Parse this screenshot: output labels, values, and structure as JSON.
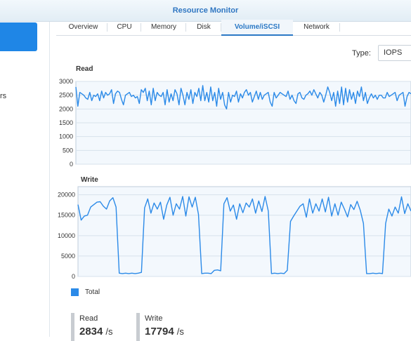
{
  "window": {
    "title": "Resource Monitor"
  },
  "sidebar": {
    "fragment_text": "rs"
  },
  "tabs": [
    "Overview",
    "CPU",
    "Memory",
    "Disk",
    "Volume/iSCSI",
    "Network"
  ],
  "active_tab": "Volume/iSCSI",
  "type_filter": {
    "label": "Type:",
    "value": "IOPS"
  },
  "legend": {
    "label": "Total",
    "color": "#2b8ae8"
  },
  "stats": {
    "read": {
      "label": "Read",
      "value": "2834",
      "unit": "/s"
    },
    "write": {
      "label": "Write",
      "value": "17794",
      "unit": "/s"
    }
  },
  "chart_data": [
    {
      "type": "line",
      "title": "Read",
      "ylim": [
        0,
        3000
      ],
      "yticks": [
        "3000",
        "2500",
        "2000",
        "1500",
        "1000",
        "500",
        "0"
      ],
      "grid": true,
      "series": [
        {
          "name": "Total",
          "values": [
            2800,
            2100,
            2600,
            2550,
            2500,
            2400,
            2350,
            2600,
            2300,
            2500,
            2450,
            2550,
            2300,
            2650,
            2400,
            2600,
            2500,
            2550,
            2700,
            2200,
            2550,
            2650,
            2600,
            2350,
            2150,
            2500,
            2550,
            2600,
            2450,
            2500,
            2400,
            2450,
            2200,
            2700,
            2600,
            2750,
            2300,
            2650,
            2150,
            2750,
            2300,
            2600,
            2500,
            2450,
            2600,
            2150,
            2700,
            2250,
            2550,
            2300,
            2700,
            2550,
            2150,
            2750,
            2500,
            2150,
            2600,
            2350,
            2700,
            2200,
            2600,
            2450,
            2750,
            2300,
            2850,
            2300,
            2600,
            2250,
            2800,
            2300,
            2600,
            2100,
            2750,
            2350,
            2600,
            2150,
            2000,
            2600,
            2250,
            2500,
            2450,
            2650,
            2250,
            2550,
            2400,
            2600,
            2700,
            2500,
            2600,
            2250,
            2450,
            2650,
            2350,
            2600,
            2350,
            2500,
            2550,
            2600,
            2250,
            2100,
            2600,
            2400,
            2500,
            2600,
            2550,
            2500,
            2450,
            2650,
            2350,
            2500,
            2300,
            2200,
            2550,
            2600,
            2400,
            2350,
            2500,
            2550,
            2650,
            2500,
            2700,
            2550,
            2400,
            2600,
            2500,
            2250,
            2500,
            2800,
            2600,
            2300,
            2600,
            2100,
            2650,
            2200,
            2800,
            2150,
            2750,
            2250,
            2700,
            2350,
            2600,
            2200,
            2650,
            2450,
            2800,
            2300,
            2600,
            2200,
            2400,
            2550,
            2400,
            2500,
            2350,
            2500,
            2500,
            2400,
            2400,
            2600,
            2450,
            2500,
            2550,
            2600,
            2300,
            2500,
            2550,
            2600,
            2100,
            2450,
            2600,
            2550
          ]
        }
      ]
    },
    {
      "type": "line",
      "title": "Write",
      "ylim": [
        0,
        22000
      ],
      "yticks": [
        "20000",
        "15000",
        "10000",
        "5000",
        "0"
      ],
      "grid": true,
      "series": [
        {
          "name": "Total",
          "values": [
            17600,
            13800,
            14800,
            15000,
            17000,
            17600,
            18200,
            18300,
            17200,
            16500,
            18500,
            19300,
            17000,
            800,
            700,
            800,
            700,
            800,
            700,
            800,
            1000,
            16800,
            19000,
            15500,
            18000,
            16500,
            18200,
            14000,
            17500,
            19400,
            15000,
            17800,
            16500,
            19600,
            14800,
            19500,
            17000,
            19400,
            15200,
            700,
            800,
            800,
            700,
            1500,
            1600,
            1400,
            17800,
            19300,
            16000,
            17500,
            14000,
            17800,
            15600,
            18000,
            17000,
            19000,
            15500,
            18500,
            15900,
            19600,
            16000,
            700,
            800,
            700,
            800,
            700,
            1500,
            13500,
            14800,
            16000,
            17200,
            17800,
            14500,
            19000,
            15500,
            17800,
            16000,
            19000,
            15800,
            19400,
            14800,
            17800,
            15000,
            18200,
            16500,
            14600,
            17600,
            16400,
            18400,
            16200,
            13000,
            700,
            700,
            800,
            700,
            800,
            700,
            13000,
            16500,
            14800,
            17000,
            15500,
            19500,
            15400,
            17800,
            16000
          ],
          "tail_values": [
            700,
            700,
            800,
            700,
            800,
            700,
            13000,
            16500,
            14800,
            17000,
            15500,
            19500,
            15400,
            17800,
            16000
          ]
        }
      ]
    }
  ]
}
